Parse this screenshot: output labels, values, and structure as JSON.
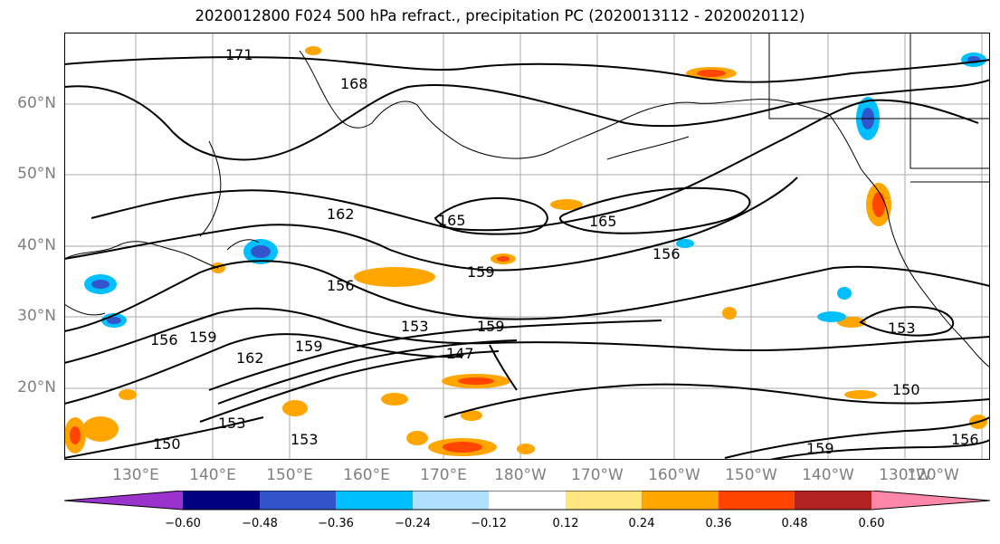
{
  "title": "2020012800 F024 500 hPa refract., precipitation PC (2020013112 - 2020020112)",
  "lat_labels": [
    "60°N",
    "50°N",
    "40°N",
    "30°N",
    "20°N"
  ],
  "lon_labels": [
    "130°E",
    "140°E",
    "150°E",
    "160°E",
    "170°E",
    "180°W",
    "170°W",
    "160°W",
    "150°W",
    "140°W",
    "130°W",
    "120°W"
  ],
  "contour_labels": [
    "171",
    "168",
    "165",
    "165",
    "162",
    "159",
    "159",
    "156",
    "156",
    "156",
    "153",
    "153",
    "153",
    "150",
    "150",
    "147",
    "159",
    "159",
    "159",
    "162",
    "153",
    "156"
  ],
  "colorbar": {
    "colors": [
      "#9933cc",
      "#000080",
      "#3355cc",
      "#00bfff",
      "#b0e0ff",
      "#ffffff",
      "#ffe680",
      "#ffa500",
      "#ff4500",
      "#b22222",
      "#ff88aa"
    ],
    "tick_labels": [
      "−0.60",
      "−0.48",
      "−0.36",
      "−0.24",
      "−0.12",
      "0.12",
      "0.24",
      "0.36",
      "0.48",
      "0.60"
    ]
  }
}
